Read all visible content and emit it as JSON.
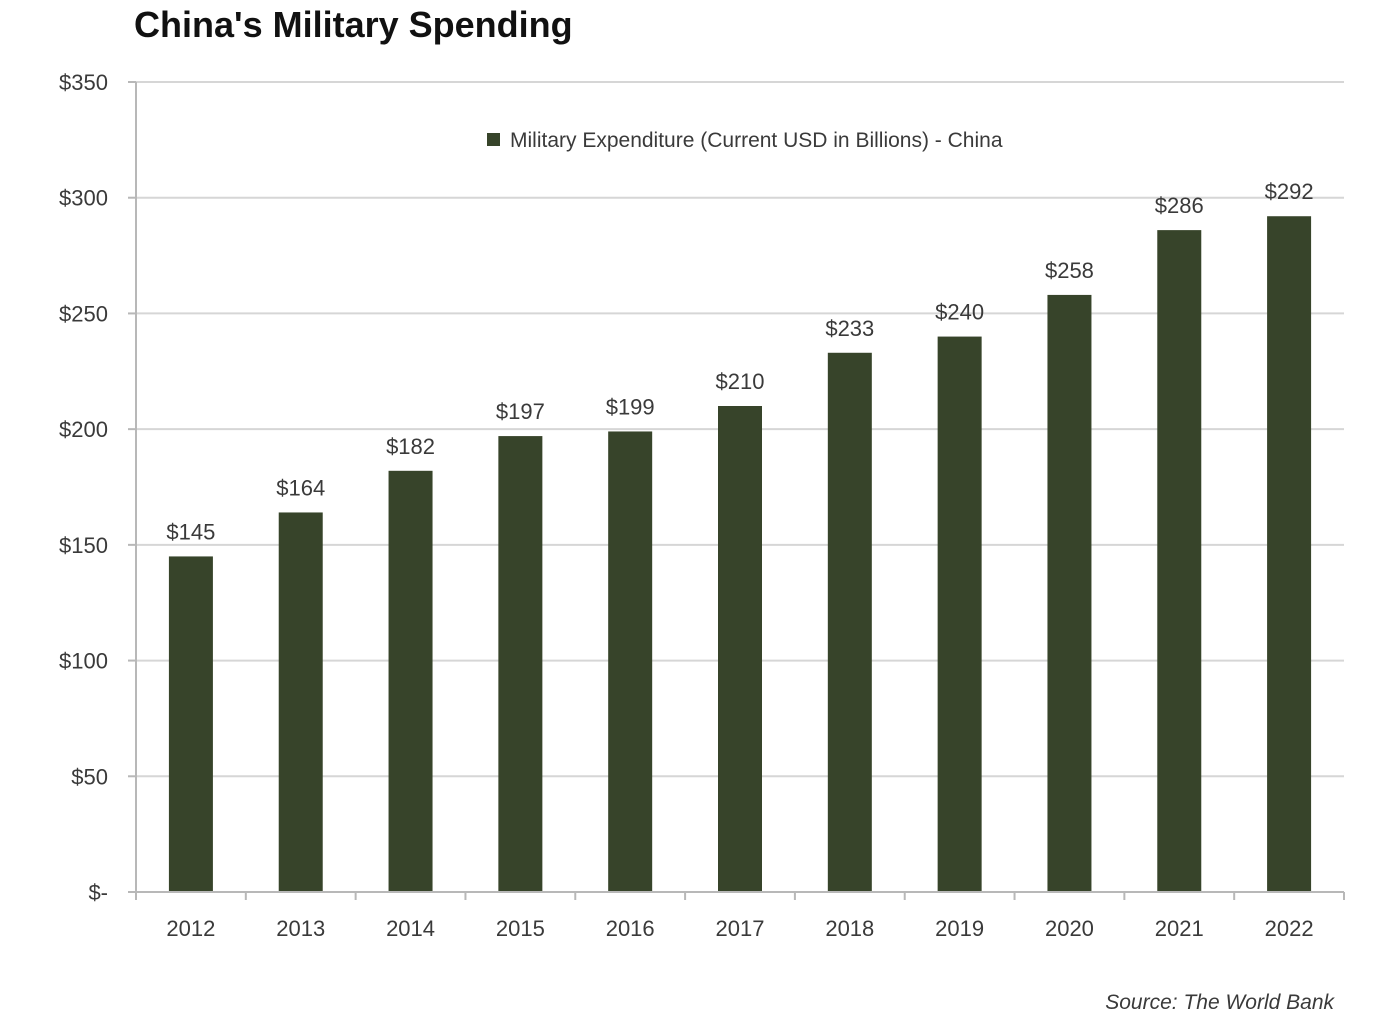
{
  "title": "China's Military Spending",
  "source": "Source: The World Bank",
  "colors": {
    "bar": "#37442a",
    "grid": "#d6d6d6",
    "text": "#3a3a3a"
  },
  "chart_data": {
    "type": "bar",
    "title": "China's Military Spending",
    "xlabel": "",
    "ylabel": "",
    "categories": [
      "2012",
      "2013",
      "2014",
      "2015",
      "2016",
      "2017",
      "2018",
      "2019",
      "2020",
      "2021",
      "2022"
    ],
    "series": [
      {
        "name": "Military Expenditure (Current USD in Billions) - China",
        "values": [
          145,
          164,
          182,
          197,
          199,
          210,
          233,
          240,
          258,
          286,
          292
        ],
        "labels": [
          "$145",
          "$164",
          "$182",
          "$197",
          "$199",
          "$210",
          "$233",
          "$240",
          "$258",
          "$286",
          "$292"
        ]
      }
    ],
    "ylim": [
      0,
      350
    ],
    "yticks": [
      0,
      50,
      100,
      150,
      200,
      250,
      300,
      350
    ],
    "ytick_labels": [
      "$-",
      "$50",
      "$100",
      "$150",
      "$200",
      "$250",
      "$300",
      "$350"
    ],
    "grid": true,
    "legend_position": "top-center"
  }
}
